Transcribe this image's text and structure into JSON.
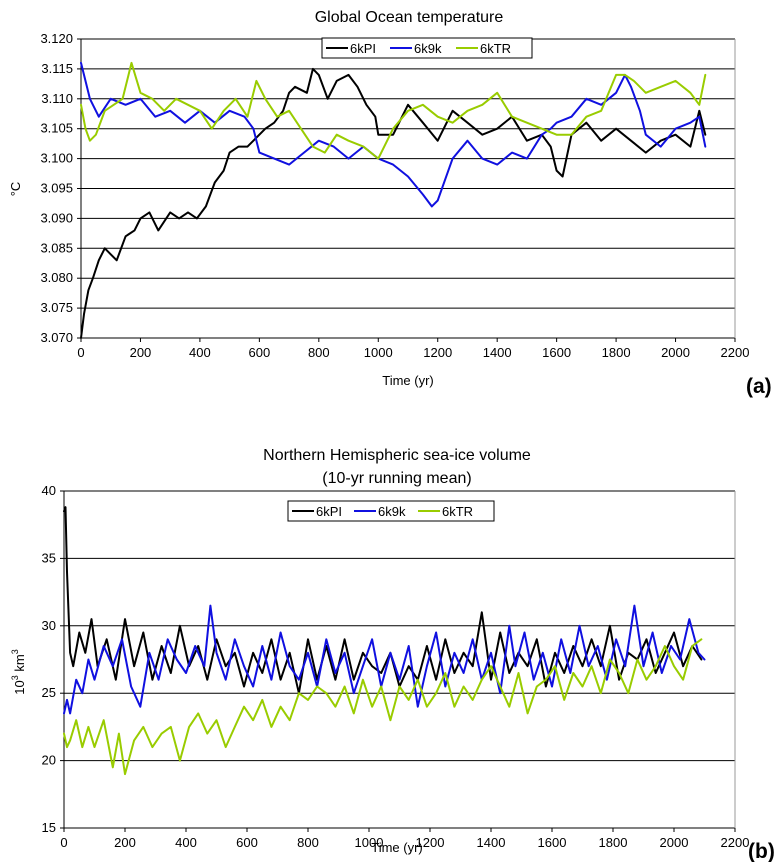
{
  "figure": {
    "panel_labels": [
      "(a)",
      "(b)"
    ]
  },
  "series_colors": {
    "6kPI": "#000000",
    "6k9k": "#1010e0",
    "6kTR": "#99cc00"
  },
  "chart_data": [
    {
      "type": "line",
      "title": "Global Ocean temperature",
      "subtitle": "",
      "xlabel": "Time (yr)",
      "ylabel": "°C",
      "xlim": [
        0,
        2200
      ],
      "ylim": [
        3.07,
        3.12
      ],
      "xticks": [
        0,
        200,
        400,
        600,
        800,
        1000,
        1200,
        1400,
        1600,
        1800,
        2000,
        2200
      ],
      "yticks": [
        "3.070",
        "3.075",
        "3.080",
        "3.085",
        "3.090",
        "3.095",
        "3.100",
        "3.105",
        "3.110",
        "3.115",
        "3.120"
      ],
      "grid": "horizontal",
      "legend_position": "top-center",
      "series": [
        {
          "name": "6kPI",
          "color": "#000000",
          "x": [
            0,
            10,
            25,
            40,
            60,
            80,
            100,
            120,
            150,
            180,
            200,
            230,
            260,
            300,
            330,
            360,
            390,
            420,
            450,
            480,
            500,
            530,
            560,
            580,
            620,
            650,
            680,
            700,
            720,
            760,
            780,
            800,
            830,
            860,
            900,
            930,
            960,
            990,
            1000,
            1050,
            1100,
            1150,
            1200,
            1250,
            1300,
            1350,
            1400,
            1450,
            1500,
            1550,
            1580,
            1600,
            1620,
            1650,
            1700,
            1750,
            1800,
            1850,
            1900,
            1950,
            2000,
            2050,
            2080,
            2100
          ],
          "y": [
            3.07,
            3.074,
            3.078,
            3.08,
            3.083,
            3.085,
            3.084,
            3.083,
            3.087,
            3.088,
            3.09,
            3.091,
            3.088,
            3.091,
            3.09,
            3.091,
            3.09,
            3.092,
            3.096,
            3.098,
            3.101,
            3.102,
            3.102,
            3.103,
            3.105,
            3.106,
            3.108,
            3.111,
            3.112,
            3.111,
            3.115,
            3.114,
            3.11,
            3.113,
            3.114,
            3.112,
            3.109,
            3.107,
            3.104,
            3.104,
            3.109,
            3.106,
            3.103,
            3.108,
            3.106,
            3.104,
            3.105,
            3.107,
            3.103,
            3.104,
            3.102,
            3.098,
            3.097,
            3.104,
            3.106,
            3.103,
            3.105,
            3.103,
            3.101,
            3.103,
            3.104,
            3.102,
            3.108,
            3.104
          ]
        },
        {
          "name": "6k9k",
          "color": "#1010e0",
          "x": [
            0,
            10,
            30,
            60,
            100,
            150,
            200,
            250,
            300,
            350,
            400,
            450,
            500,
            550,
            580,
            600,
            650,
            700,
            750,
            800,
            850,
            900,
            950,
            1000,
            1050,
            1100,
            1150,
            1180,
            1200,
            1250,
            1300,
            1350,
            1400,
            1450,
            1500,
            1550,
            1580,
            1600,
            1650,
            1700,
            1750,
            1800,
            1830,
            1850,
            1880,
            1900,
            1950,
            2000,
            2050,
            2080,
            2100
          ],
          "y": [
            3.116,
            3.114,
            3.11,
            3.107,
            3.11,
            3.109,
            3.11,
            3.107,
            3.108,
            3.106,
            3.108,
            3.106,
            3.108,
            3.107,
            3.105,
            3.101,
            3.1,
            3.099,
            3.101,
            3.103,
            3.102,
            3.1,
            3.102,
            3.1,
            3.099,
            3.097,
            3.094,
            3.092,
            3.093,
            3.1,
            3.103,
            3.1,
            3.099,
            3.101,
            3.1,
            3.104,
            3.105,
            3.106,
            3.107,
            3.11,
            3.109,
            3.111,
            3.114,
            3.112,
            3.108,
            3.104,
            3.102,
            3.105,
            3.106,
            3.107,
            3.102
          ]
        },
        {
          "name": "6kTR",
          "color": "#99cc00",
          "x": [
            0,
            15,
            30,
            50,
            80,
            110,
            140,
            170,
            200,
            240,
            280,
            320,
            360,
            400,
            440,
            480,
            520,
            560,
            590,
            620,
            660,
            700,
            740,
            780,
            820,
            860,
            900,
            950,
            1000,
            1050,
            1100,
            1150,
            1200,
            1250,
            1300,
            1350,
            1400,
            1450,
            1500,
            1550,
            1600,
            1650,
            1700,
            1750,
            1800,
            1830,
            1860,
            1900,
            1950,
            2000,
            2050,
            2080,
            2100
          ],
          "y": [
            3.109,
            3.105,
            3.103,
            3.104,
            3.108,
            3.109,
            3.11,
            3.116,
            3.111,
            3.11,
            3.108,
            3.11,
            3.109,
            3.108,
            3.105,
            3.108,
            3.11,
            3.107,
            3.113,
            3.11,
            3.107,
            3.108,
            3.105,
            3.102,
            3.101,
            3.104,
            3.103,
            3.102,
            3.1,
            3.105,
            3.108,
            3.109,
            3.107,
            3.106,
            3.108,
            3.109,
            3.111,
            3.107,
            3.106,
            3.105,
            3.104,
            3.104,
            3.107,
            3.108,
            3.114,
            3.114,
            3.113,
            3.111,
            3.112,
            3.113,
            3.111,
            3.109,
            3.114
          ]
        }
      ]
    },
    {
      "type": "line",
      "title": "Northern Hemispheric sea-ice volume",
      "subtitle": "(10-yr running mean)",
      "xlabel": "Time (yr)",
      "ylabel_parts": [
        "10",
        "3",
        " km",
        "3"
      ],
      "xlim": [
        0,
        2200
      ],
      "ylim": [
        15,
        40
      ],
      "xticks": [
        0,
        200,
        400,
        600,
        800,
        1000,
        1200,
        1400,
        1600,
        1800,
        2000,
        2200
      ],
      "yticks": [
        "15",
        "20",
        "25",
        "30",
        "35",
        "40"
      ],
      "grid": "horizontal",
      "legend_position": "top-center",
      "series": [
        {
          "name": "6kPI",
          "color": "#000000",
          "x": [
            0,
            5,
            10,
            20,
            30,
            50,
            70,
            90,
            110,
            140,
            170,
            200,
            230,
            260,
            290,
            320,
            350,
            380,
            410,
            440,
            470,
            500,
            530,
            560,
            590,
            620,
            650,
            680,
            710,
            740,
            770,
            800,
            830,
            860,
            890,
            920,
            950,
            980,
            1010,
            1040,
            1070,
            1100,
            1130,
            1160,
            1190,
            1220,
            1250,
            1280,
            1310,
            1340,
            1370,
            1400,
            1430,
            1460,
            1490,
            1520,
            1550,
            1580,
            1610,
            1640,
            1670,
            1700,
            1730,
            1760,
            1790,
            1820,
            1850,
            1880,
            1910,
            1940,
            1970,
            2000,
            2030,
            2060,
            2090
          ],
          "y": [
            38.5,
            38.8,
            34,
            28,
            27,
            29.5,
            28,
            30.5,
            27,
            29,
            26,
            30.5,
            27,
            29.5,
            26,
            28.5,
            26.5,
            30,
            27,
            28.5,
            26,
            29,
            27,
            28,
            25.5,
            28,
            26.5,
            29,
            26,
            28,
            25,
            29,
            26,
            28.5,
            26,
            29,
            26,
            28,
            27,
            26.5,
            28,
            25.5,
            27,
            26,
            28.5,
            26,
            29,
            26.5,
            28,
            27,
            31,
            26,
            29.5,
            26.5,
            28,
            27,
            29,
            25.5,
            28,
            26.5,
            28.5,
            27,
            29,
            27,
            30,
            26,
            28,
            27.5,
            29,
            26.5,
            28,
            29.5,
            27,
            28.5,
            27.5
          ]
        },
        {
          "name": "6k9k",
          "color": "#1010e0",
          "x": [
            0,
            10,
            20,
            40,
            60,
            80,
            100,
            130,
            160,
            190,
            220,
            250,
            280,
            310,
            340,
            370,
            400,
            430,
            460,
            480,
            500,
            530,
            560,
            590,
            620,
            650,
            680,
            710,
            740,
            770,
            800,
            830,
            860,
            890,
            920,
            950,
            980,
            1010,
            1040,
            1070,
            1100,
            1130,
            1160,
            1190,
            1220,
            1250,
            1280,
            1310,
            1340,
            1370,
            1400,
            1430,
            1460,
            1480,
            1510,
            1540,
            1570,
            1600,
            1630,
            1660,
            1690,
            1720,
            1750,
            1780,
            1810,
            1840,
            1870,
            1900,
            1930,
            1960,
            1990,
            2020,
            2050,
            2080,
            2100
          ],
          "y": [
            23.5,
            24.5,
            23.5,
            26,
            25,
            27.5,
            26,
            28.5,
            27,
            29,
            25.5,
            24,
            28,
            26,
            29,
            27.5,
            26.5,
            28.5,
            27,
            31.5,
            28,
            26,
            29,
            27,
            25.5,
            28.5,
            26,
            29.5,
            27,
            26,
            28,
            25.5,
            29,
            26.5,
            28,
            25,
            27,
            29,
            25.5,
            28,
            26,
            28.5,
            24,
            27,
            29.5,
            25.5,
            28,
            26.5,
            29,
            26,
            28,
            25,
            30,
            27,
            29.5,
            26,
            28,
            25.5,
            29,
            26.5,
            30,
            27,
            28.5,
            26,
            29,
            27,
            31.5,
            27,
            29.5,
            26.5,
            28.5,
            27.5,
            30.5,
            28,
            27.5
          ]
        },
        {
          "name": "6kTR",
          "color": "#99cc00",
          "x": [
            0,
            10,
            20,
            40,
            60,
            80,
            100,
            130,
            160,
            180,
            200,
            230,
            260,
            290,
            320,
            350,
            380,
            410,
            440,
            470,
            500,
            530,
            560,
            590,
            620,
            650,
            680,
            710,
            740,
            770,
            800,
            830,
            860,
            890,
            920,
            950,
            980,
            1010,
            1040,
            1070,
            1100,
            1130,
            1160,
            1190,
            1220,
            1250,
            1280,
            1310,
            1340,
            1370,
            1400,
            1430,
            1460,
            1490,
            1520,
            1550,
            1580,
            1610,
            1640,
            1670,
            1700,
            1730,
            1760,
            1790,
            1820,
            1850,
            1880,
            1910,
            1940,
            1970,
            2000,
            2030,
            2060,
            2090
          ],
          "y": [
            22,
            21,
            21.5,
            23,
            21,
            22.5,
            21,
            23,
            19.5,
            22,
            19,
            21.5,
            22.5,
            21,
            22,
            22.5,
            20,
            22.5,
            23.5,
            22,
            23,
            21,
            22.5,
            24,
            23,
            24.5,
            22.5,
            24,
            23,
            25,
            24.5,
            25.5,
            25,
            24,
            25.5,
            23.5,
            26,
            24,
            25.5,
            23,
            25.5,
            24.5,
            26,
            24,
            25,
            26.5,
            24,
            25.5,
            24.5,
            26,
            27,
            25.5,
            24,
            26.5,
            23.5,
            25.5,
            26,
            27,
            24.5,
            26.5,
            25.5,
            27,
            25,
            27.5,
            26.5,
            25,
            27.5,
            26,
            27,
            28.5,
            27,
            26,
            28.5,
            29
          ]
        }
      ]
    }
  ]
}
